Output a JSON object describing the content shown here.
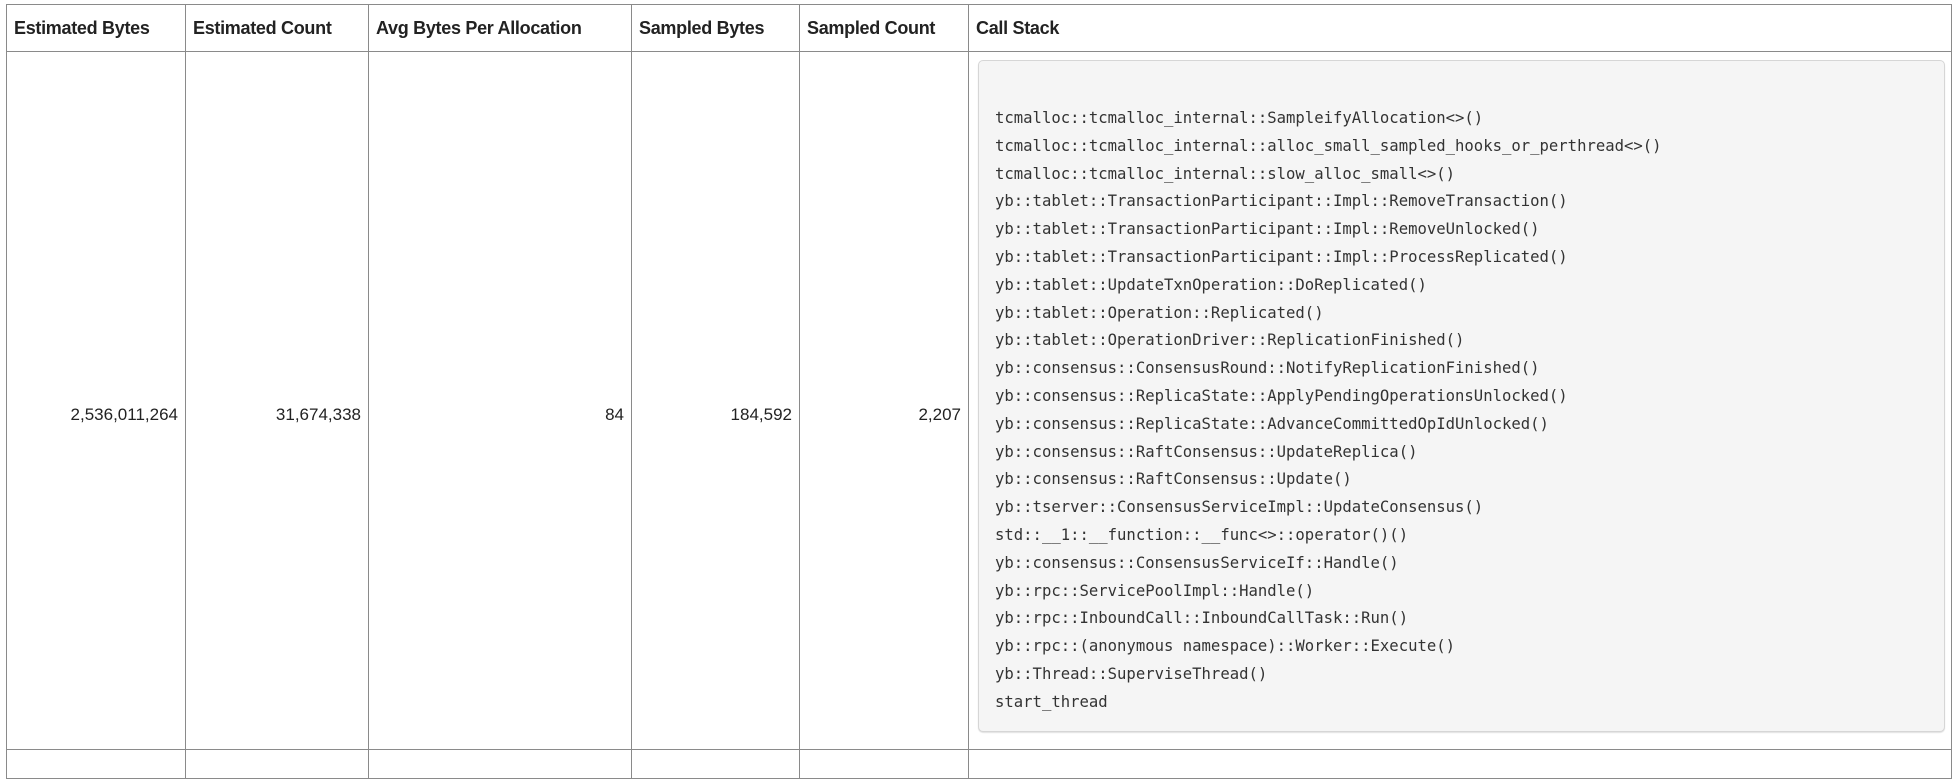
{
  "columns": [
    "Estimated Bytes",
    "Estimated Count",
    "Avg Bytes Per Allocation",
    "Sampled Bytes",
    "Sampled Count",
    "Call Stack"
  ],
  "rows": [
    {
      "estimated_bytes": "2,536,011,264",
      "estimated_count": "31,674,338",
      "avg_bytes": "84",
      "sampled_bytes": "184,592",
      "sampled_count": "2,207",
      "call_stack": [
        "tcmalloc::tcmalloc_internal::SampleifyAllocation<>()",
        "tcmalloc::tcmalloc_internal::alloc_small_sampled_hooks_or_perthread<>()",
        "tcmalloc::tcmalloc_internal::slow_alloc_small<>()",
        "yb::tablet::TransactionParticipant::Impl::RemoveTransaction()",
        "yb::tablet::TransactionParticipant::Impl::RemoveUnlocked()",
        "yb::tablet::TransactionParticipant::Impl::ProcessReplicated()",
        "yb::tablet::UpdateTxnOperation::DoReplicated()",
        "yb::tablet::Operation::Replicated()",
        "yb::tablet::OperationDriver::ReplicationFinished()",
        "yb::consensus::ConsensusRound::NotifyReplicationFinished()",
        "yb::consensus::ReplicaState::ApplyPendingOperationsUnlocked()",
        "yb::consensus::ReplicaState::AdvanceCommittedOpIdUnlocked()",
        "yb::consensus::RaftConsensus::UpdateReplica()",
        "yb::consensus::RaftConsensus::Update()",
        "yb::tserver::ConsensusServiceImpl::UpdateConsensus()",
        "std::__1::__function::__func<>::operator()()",
        "yb::consensus::ConsensusServiceIf::Handle()",
        "yb::rpc::ServicePoolImpl::Handle()",
        "yb::rpc::InboundCall::InboundCallTask::Run()",
        "yb::rpc::(anonymous namespace)::Worker::Execute()",
        "yb::Thread::SuperviseThread()",
        "start_thread"
      ]
    }
  ]
}
